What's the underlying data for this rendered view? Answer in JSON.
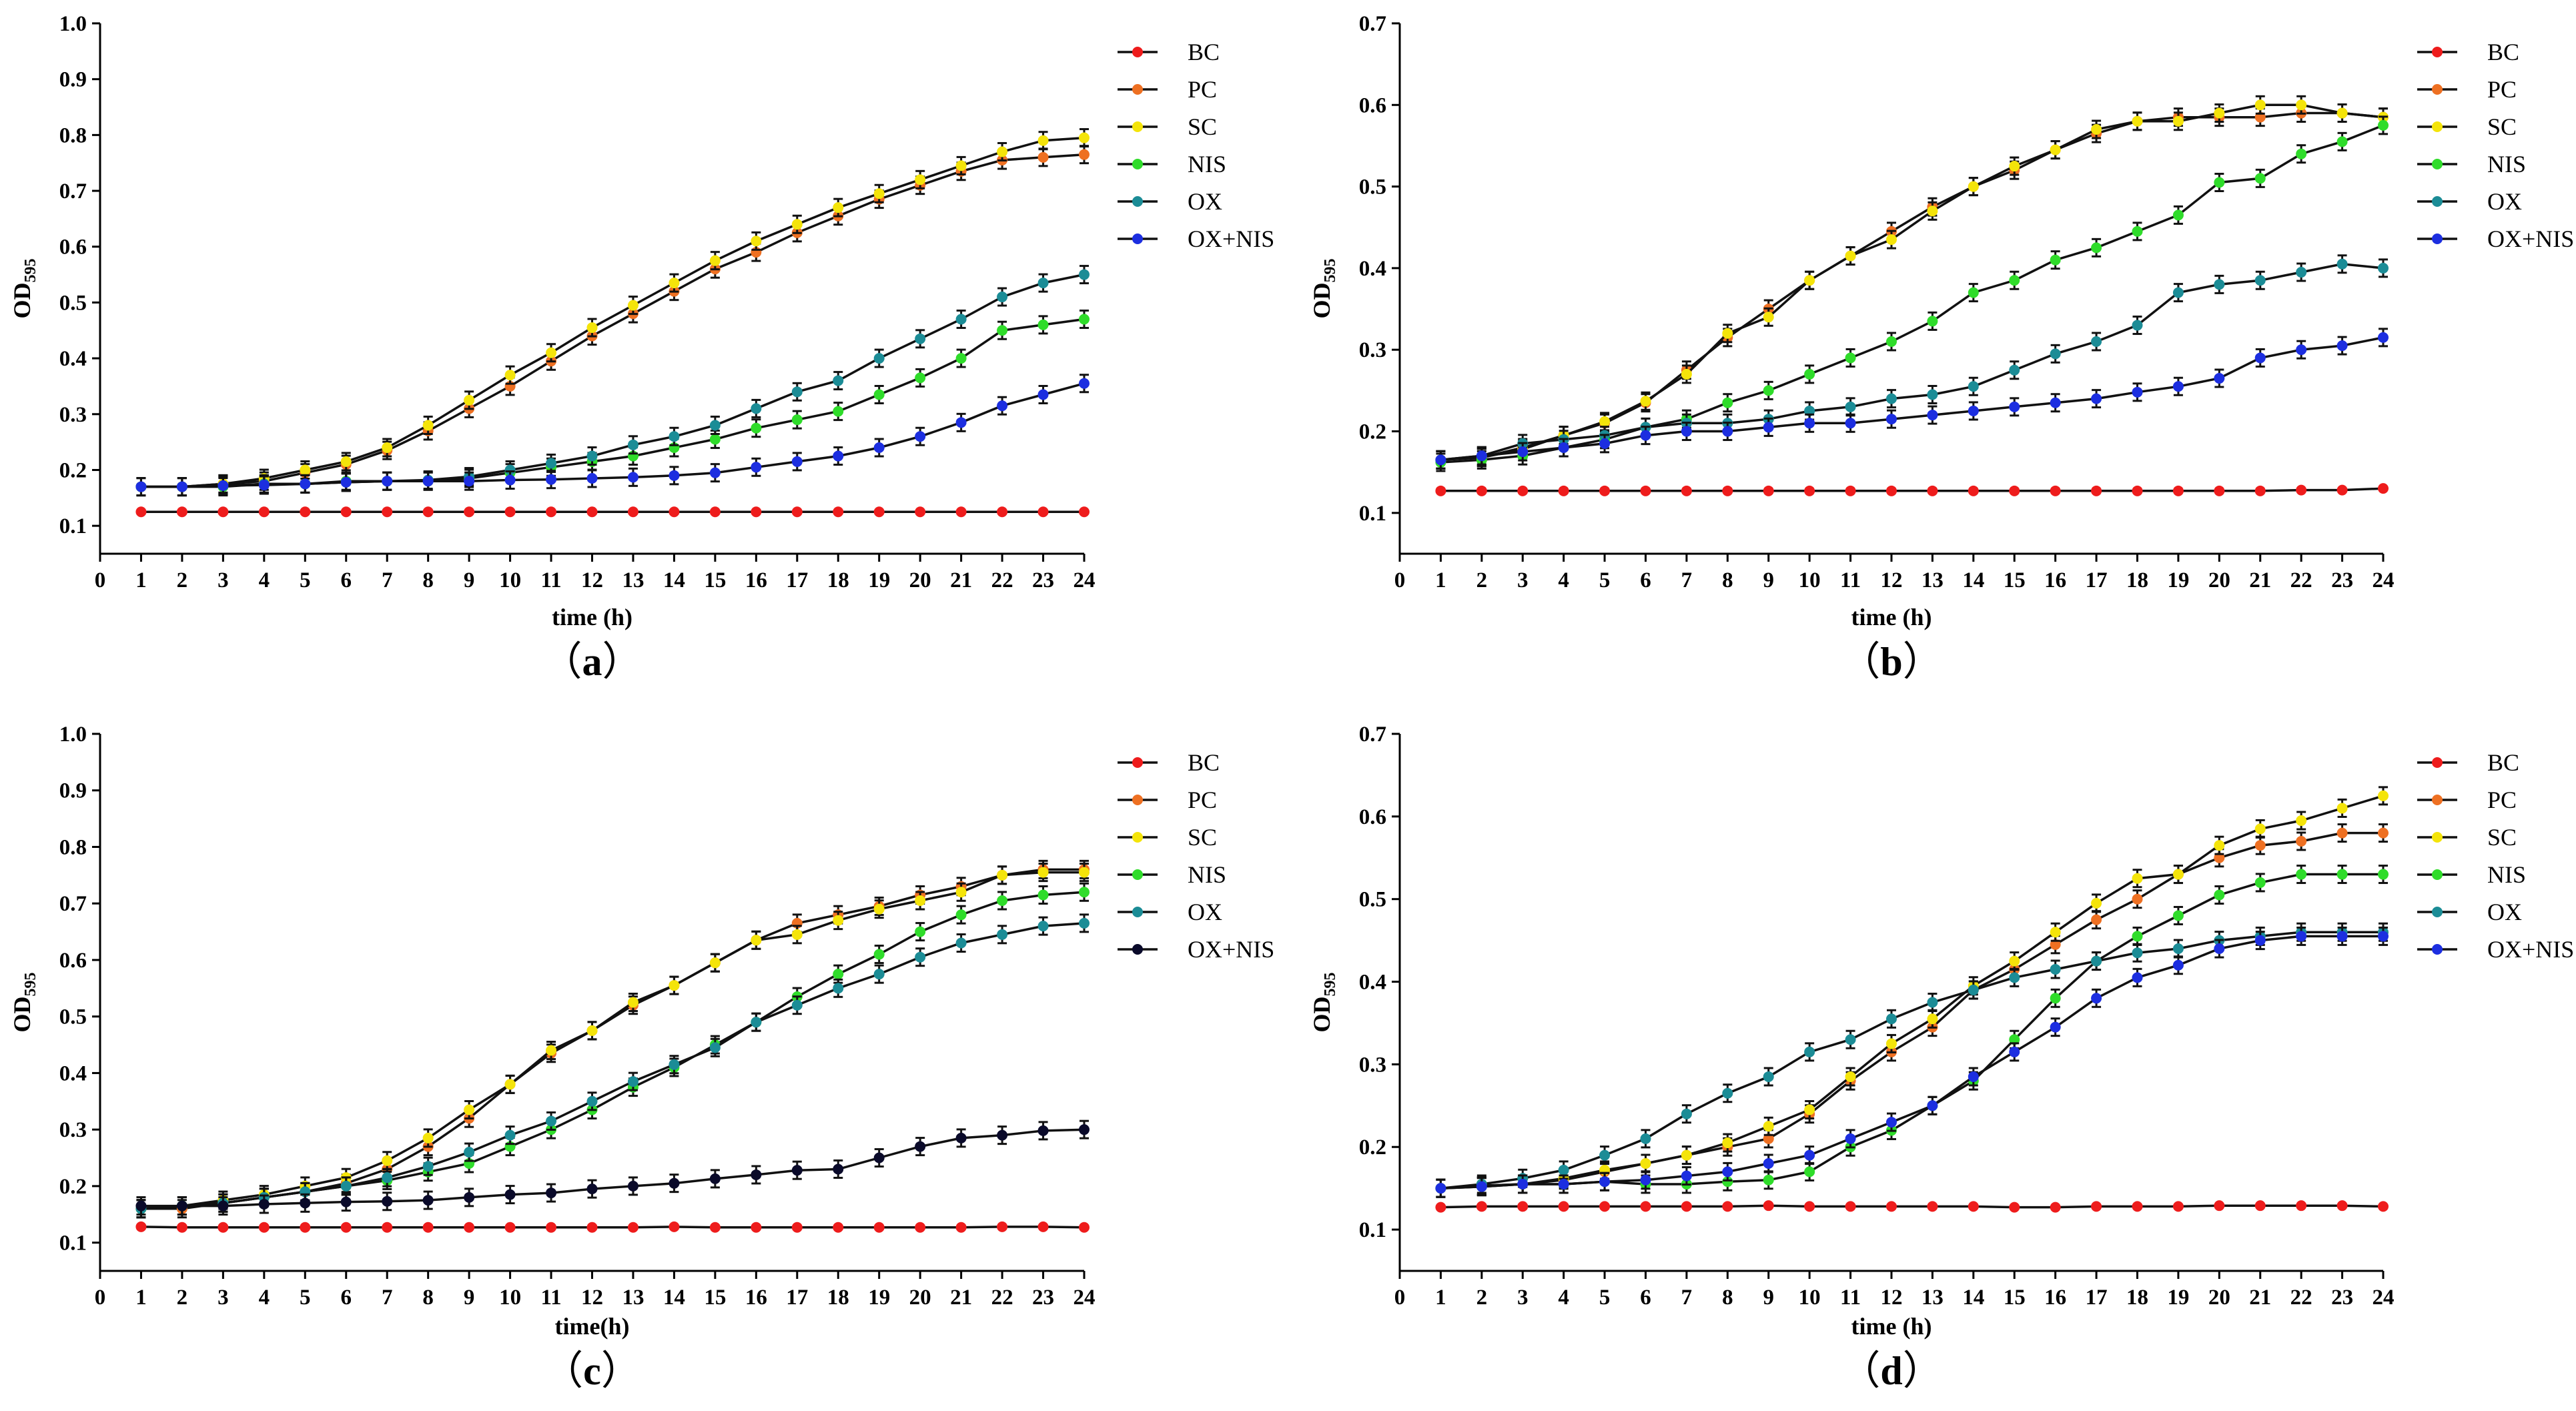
{
  "colors": {
    "BC": "#ee1c1c",
    "PC": "#ee7022",
    "SC": "#f4e40a",
    "NIS": "#2fdc2a",
    "OX": "#1b8c96",
    "OX+NIS": "#1c2ee0",
    "OX+NIS_c": "#0a0a2a"
  },
  "chart_data": [
    {
      "type": "line",
      "panel_label": "(a)",
      "panel_open": "（",
      "panel_letter": "a",
      "panel_close": "）",
      "xlabel": "time (h)",
      "ylabel": "OD",
      "ylabel_sub": "595",
      "xlim": [
        0,
        24
      ],
      "ylim": [
        0.05,
        1.0
      ],
      "xticks": [
        0,
        1,
        2,
        3,
        4,
        5,
        6,
        7,
        8,
        9,
        10,
        11,
        12,
        13,
        14,
        15,
        16,
        17,
        18,
        19,
        20,
        21,
        22,
        23,
        24
      ],
      "yticks": [
        0.1,
        0.2,
        0.3,
        0.4,
        0.5,
        0.6,
        0.7,
        0.8,
        0.9,
        1.0
      ],
      "ytick_labels": [
        "0.1",
        "0.2",
        "0.3",
        "0.4",
        "0.5",
        "0.6",
        "0.7",
        "0.8",
        "0.9",
        "1.0"
      ],
      "x": [
        1,
        2,
        3,
        4,
        5,
        6,
        7,
        8,
        9,
        10,
        11,
        12,
        13,
        14,
        15,
        16,
        17,
        18,
        19,
        20,
        21,
        22,
        23,
        24
      ],
      "series": [
        {
          "name": "BC",
          "color_key": "BC",
          "values": [
            0.125,
            0.125,
            0.125,
            0.125,
            0.125,
            0.125,
            0.125,
            0.125,
            0.125,
            0.125,
            0.125,
            0.125,
            0.125,
            0.125,
            0.125,
            0.125,
            0.125,
            0.125,
            0.125,
            0.125,
            0.125,
            0.125,
            0.125,
            0.125
          ]
        },
        {
          "name": "PC",
          "color_key": "PC",
          "values": [
            0.17,
            0.17,
            0.175,
            0.18,
            0.195,
            0.21,
            0.235,
            0.27,
            0.31,
            0.35,
            0.395,
            0.44,
            0.48,
            0.52,
            0.56,
            0.59,
            0.625,
            0.655,
            0.685,
            0.71,
            0.735,
            0.755,
            0.76,
            0.765
          ]
        },
        {
          "name": "SC",
          "color_key": "SC",
          "values": [
            0.17,
            0.17,
            0.175,
            0.185,
            0.2,
            0.215,
            0.24,
            0.28,
            0.325,
            0.37,
            0.41,
            0.455,
            0.495,
            0.535,
            0.575,
            0.61,
            0.64,
            0.67,
            0.695,
            0.72,
            0.745,
            0.77,
            0.79,
            0.795
          ]
        },
        {
          "name": "NIS",
          "color_key": "NIS",
          "values": [
            0.17,
            0.17,
            0.17,
            0.175,
            0.175,
            0.18,
            0.18,
            0.18,
            0.185,
            0.195,
            0.205,
            0.215,
            0.225,
            0.24,
            0.255,
            0.275,
            0.29,
            0.305,
            0.335,
            0.365,
            0.4,
            0.45,
            0.46,
            0.47
          ]
        },
        {
          "name": "OX",
          "color_key": "OX",
          "values": [
            0.17,
            0.17,
            0.172,
            0.175,
            0.175,
            0.178,
            0.18,
            0.182,
            0.188,
            0.2,
            0.212,
            0.225,
            0.245,
            0.26,
            0.28,
            0.31,
            0.34,
            0.36,
            0.4,
            0.435,
            0.47,
            0.51,
            0.535,
            0.55
          ]
        },
        {
          "name": "OX+NIS",
          "color_key": "OX+NIS",
          "values": [
            0.17,
            0.17,
            0.172,
            0.173,
            0.175,
            0.178,
            0.18,
            0.18,
            0.18,
            0.182,
            0.183,
            0.185,
            0.187,
            0.19,
            0.195,
            0.205,
            0.215,
            0.225,
            0.24,
            0.26,
            0.285,
            0.315,
            0.335,
            0.355
          ]
        }
      ]
    },
    {
      "type": "line",
      "panel_label": "(b)",
      "panel_open": "（",
      "panel_letter": "b",
      "panel_close": "）",
      "xlabel": "time (h)",
      "ylabel": "OD",
      "ylabel_sub": "595",
      "xlim": [
        0,
        24
      ],
      "ylim": [
        0.05,
        0.7
      ],
      "xticks": [
        0,
        1,
        2,
        3,
        4,
        5,
        6,
        7,
        8,
        9,
        10,
        11,
        12,
        13,
        14,
        15,
        16,
        17,
        18,
        19,
        20,
        21,
        22,
        23,
        24
      ],
      "yticks": [
        0.1,
        0.2,
        0.3,
        0.4,
        0.5,
        0.6,
        0.7
      ],
      "ytick_labels": [
        "0.1",
        "0.2",
        "0.3",
        "0.4",
        "0.5",
        "0.6",
        "0.7"
      ],
      "x": [
        1,
        2,
        3,
        4,
        5,
        6,
        7,
        8,
        9,
        10,
        11,
        12,
        13,
        14,
        15,
        16,
        17,
        18,
        19,
        20,
        21,
        22,
        23,
        24
      ],
      "series": [
        {
          "name": "BC",
          "color_key": "BC",
          "values": [
            0.127,
            0.127,
            0.127,
            0.127,
            0.127,
            0.127,
            0.127,
            0.127,
            0.127,
            0.127,
            0.127,
            0.127,
            0.127,
            0.127,
            0.127,
            0.127,
            0.127,
            0.127,
            0.127,
            0.127,
            0.127,
            0.128,
            0.128,
            0.13
          ]
        },
        {
          "name": "PC",
          "color_key": "PC",
          "values": [
            0.165,
            0.168,
            0.18,
            0.195,
            0.21,
            0.235,
            0.275,
            0.315,
            0.35,
            0.385,
            0.415,
            0.445,
            0.475,
            0.5,
            0.52,
            0.545,
            0.565,
            0.58,
            0.585,
            0.585,
            0.585,
            0.59,
            0.59,
            0.585
          ]
        },
        {
          "name": "SC",
          "color_key": "SC",
          "values": [
            0.165,
            0.168,
            0.178,
            0.195,
            0.212,
            0.237,
            0.27,
            0.32,
            0.34,
            0.385,
            0.415,
            0.435,
            0.47,
            0.5,
            0.525,
            0.545,
            0.57,
            0.58,
            0.58,
            0.59,
            0.6,
            0.6,
            0.59,
            0.585
          ]
        },
        {
          "name": "NIS",
          "color_key": "NIS",
          "values": [
            0.162,
            0.165,
            0.17,
            0.18,
            0.19,
            0.205,
            0.215,
            0.235,
            0.25,
            0.27,
            0.29,
            0.31,
            0.335,
            0.37,
            0.385,
            0.41,
            0.425,
            0.445,
            0.465,
            0.505,
            0.51,
            0.54,
            0.555,
            0.575
          ]
        },
        {
          "name": "OX",
          "color_key": "OX",
          "values": [
            0.165,
            0.17,
            0.185,
            0.19,
            0.195,
            0.205,
            0.21,
            0.21,
            0.215,
            0.225,
            0.23,
            0.24,
            0.245,
            0.255,
            0.275,
            0.295,
            0.31,
            0.33,
            0.37,
            0.38,
            0.385,
            0.395,
            0.405,
            0.4
          ]
        },
        {
          "name": "OX+NIS",
          "color_key": "OX+NIS",
          "values": [
            0.165,
            0.17,
            0.175,
            0.18,
            0.185,
            0.195,
            0.2,
            0.2,
            0.205,
            0.21,
            0.21,
            0.215,
            0.22,
            0.225,
            0.23,
            0.235,
            0.24,
            0.248,
            0.255,
            0.265,
            0.29,
            0.3,
            0.305,
            0.315
          ]
        }
      ]
    },
    {
      "type": "line",
      "panel_label": "(c)",
      "panel_open": "（",
      "panel_letter": "c",
      "panel_close": "）",
      "xlabel": "time(h)",
      "ylabel": "OD",
      "ylabel_sub": "595",
      "xlim": [
        0,
        24
      ],
      "ylim": [
        0.05,
        1.0
      ],
      "xticks": [
        0,
        1,
        2,
        3,
        4,
        5,
        6,
        7,
        8,
        9,
        10,
        11,
        12,
        13,
        14,
        15,
        16,
        17,
        18,
        19,
        20,
        21,
        22,
        23,
        24
      ],
      "yticks": [
        0.1,
        0.2,
        0.3,
        0.4,
        0.5,
        0.6,
        0.7,
        0.8,
        0.9,
        1.0
      ],
      "ytick_labels": [
        "0.1",
        "0.2",
        "0.3",
        "0.4",
        "0.5",
        "0.6",
        "0.7",
        "0.8",
        "0.9",
        "1.0"
      ],
      "x": [
        1,
        2,
        3,
        4,
        5,
        6,
        7,
        8,
        9,
        10,
        11,
        12,
        13,
        14,
        15,
        16,
        17,
        18,
        19,
        20,
        21,
        22,
        23,
        24
      ],
      "series": [
        {
          "name": "BC",
          "color_key": "BC",
          "values": [
            0.128,
            0.127,
            0.127,
            0.127,
            0.127,
            0.127,
            0.127,
            0.127,
            0.127,
            0.127,
            0.127,
            0.127,
            0.127,
            0.128,
            0.127,
            0.127,
            0.127,
            0.127,
            0.127,
            0.127,
            0.127,
            0.128,
            0.128,
            0.127
          ]
        },
        {
          "name": "PC",
          "color_key": "PC",
          "values": [
            0.16,
            0.16,
            0.17,
            0.18,
            0.19,
            0.205,
            0.23,
            0.27,
            0.32,
            0.38,
            0.435,
            0.475,
            0.52,
            0.555,
            0.595,
            0.635,
            0.665,
            0.68,
            0.695,
            0.715,
            0.73,
            0.75,
            0.76,
            0.76
          ]
        },
        {
          "name": "SC",
          "color_key": "SC",
          "values": [
            0.16,
            0.165,
            0.175,
            0.185,
            0.2,
            0.215,
            0.245,
            0.285,
            0.335,
            0.38,
            0.44,
            0.475,
            0.525,
            0.555,
            0.595,
            0.635,
            0.645,
            0.67,
            0.69,
            0.705,
            0.72,
            0.75,
            0.755,
            0.755
          ]
        },
        {
          "name": "NIS",
          "color_key": "NIS",
          "values": [
            0.16,
            0.165,
            0.17,
            0.18,
            0.19,
            0.2,
            0.21,
            0.225,
            0.24,
            0.27,
            0.3,
            0.335,
            0.375,
            0.41,
            0.45,
            0.49,
            0.535,
            0.575,
            0.61,
            0.65,
            0.68,
            0.705,
            0.715,
            0.72
          ]
        },
        {
          "name": "OX",
          "color_key": "OX",
          "values": [
            0.16,
            0.165,
            0.17,
            0.18,
            0.19,
            0.2,
            0.215,
            0.235,
            0.26,
            0.29,
            0.315,
            0.35,
            0.385,
            0.415,
            0.445,
            0.49,
            0.52,
            0.55,
            0.575,
            0.605,
            0.63,
            0.645,
            0.66,
            0.665
          ]
        },
        {
          "name": "OX+NIS",
          "color_key": "OX+NIS_c",
          "values": [
            0.165,
            0.165,
            0.165,
            0.168,
            0.17,
            0.172,
            0.173,
            0.175,
            0.18,
            0.185,
            0.188,
            0.195,
            0.2,
            0.205,
            0.213,
            0.22,
            0.228,
            0.23,
            0.25,
            0.27,
            0.285,
            0.29,
            0.298,
            0.3
          ]
        }
      ]
    },
    {
      "type": "line",
      "panel_label": "(d)",
      "panel_open": "（",
      "panel_letter": "d",
      "panel_close": "）",
      "xlabel": "time (h)",
      "ylabel": "OD",
      "ylabel_sub": "595",
      "xlim": [
        0,
        24
      ],
      "ylim": [
        0.05,
        0.7
      ],
      "xticks": [
        0,
        1,
        2,
        3,
        4,
        5,
        6,
        7,
        8,
        9,
        10,
        11,
        12,
        13,
        14,
        15,
        16,
        17,
        18,
        19,
        20,
        21,
        22,
        23,
        24
      ],
      "yticks": [
        0.1,
        0.2,
        0.3,
        0.4,
        0.5,
        0.6,
        0.7
      ],
      "ytick_labels": [
        "0.1",
        "0.2",
        "0.3",
        "0.4",
        "0.5",
        "0.6",
        "0.7"
      ],
      "x": [
        1,
        2,
        3,
        4,
        5,
        6,
        7,
        8,
        9,
        10,
        11,
        12,
        13,
        14,
        15,
        16,
        17,
        18,
        19,
        20,
        21,
        22,
        23,
        24
      ],
      "series": [
        {
          "name": "BC",
          "color_key": "BC",
          "values": [
            0.127,
            0.128,
            0.128,
            0.128,
            0.128,
            0.128,
            0.128,
            0.128,
            0.129,
            0.128,
            0.128,
            0.128,
            0.128,
            0.128,
            0.127,
            0.127,
            0.128,
            0.128,
            0.128,
            0.129,
            0.129,
            0.129,
            0.129,
            0.128
          ]
        },
        {
          "name": "PC",
          "color_key": "PC",
          "values": [
            0.15,
            0.153,
            0.155,
            0.16,
            0.17,
            0.18,
            0.19,
            0.2,
            0.21,
            0.24,
            0.28,
            0.315,
            0.345,
            0.39,
            0.415,
            0.445,
            0.475,
            0.5,
            0.53,
            0.55,
            0.565,
            0.57,
            0.58,
            0.58
          ]
        },
        {
          "name": "SC",
          "color_key": "SC",
          "values": [
            0.15,
            0.153,
            0.155,
            0.162,
            0.172,
            0.18,
            0.19,
            0.205,
            0.225,
            0.245,
            0.285,
            0.325,
            0.355,
            0.395,
            0.425,
            0.46,
            0.495,
            0.525,
            0.53,
            0.565,
            0.585,
            0.595,
            0.61,
            0.625
          ]
        },
        {
          "name": "NIS",
          "color_key": "NIS",
          "values": [
            0.15,
            0.152,
            0.155,
            0.155,
            0.158,
            0.155,
            0.155,
            0.158,
            0.16,
            0.17,
            0.2,
            0.22,
            0.25,
            0.28,
            0.33,
            0.38,
            0.425,
            0.455,
            0.48,
            0.505,
            0.52,
            0.53,
            0.53,
            0.53
          ]
        },
        {
          "name": "OX",
          "color_key": "OX",
          "values": [
            0.15,
            0.155,
            0.162,
            0.172,
            0.19,
            0.21,
            0.24,
            0.265,
            0.285,
            0.315,
            0.33,
            0.355,
            0.375,
            0.39,
            0.405,
            0.415,
            0.425,
            0.435,
            0.44,
            0.45,
            0.455,
            0.46,
            0.46,
            0.46
          ]
        },
        {
          "name": "OX+NIS",
          "color_key": "OX+NIS",
          "values": [
            0.15,
            0.152,
            0.155,
            0.155,
            0.158,
            0.16,
            0.165,
            0.17,
            0.18,
            0.19,
            0.21,
            0.23,
            0.25,
            0.285,
            0.315,
            0.345,
            0.38,
            0.405,
            0.42,
            0.44,
            0.45,
            0.455,
            0.455,
            0.455
          ]
        }
      ]
    }
  ]
}
